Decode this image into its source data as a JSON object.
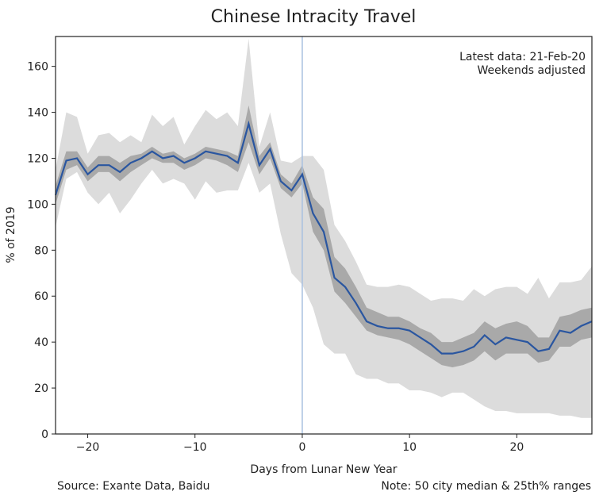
{
  "chart_data": {
    "type": "line",
    "title": "Chinese Intracity Travel",
    "xlabel": "Days from Lunar New Year",
    "ylabel": "% of 2019",
    "xlim": [
      -23,
      27
    ],
    "ylim": [
      0,
      173
    ],
    "xticks": [
      -20,
      -10,
      0,
      10,
      20
    ],
    "xtick_labels": [
      "−20",
      "−10",
      "0",
      "10",
      "20"
    ],
    "yticks": [
      0,
      20,
      40,
      60,
      80,
      100,
      120,
      140,
      160
    ],
    "grid": false,
    "annotation": [
      "Latest data: 21-Feb-20",
      "Weekends adjusted"
    ],
    "footer_left": "Source: Exante Data, Baidu",
    "footer_right": "Note: 50 city median & 25th% ranges",
    "vline_x": 0,
    "colors": {
      "median": "#2a56a0",
      "inner": "#a9a9a9",
      "outer": "#dcdcdc",
      "vline": "#a8c0e0"
    },
    "x": [
      -23,
      -22,
      -21,
      -20,
      -19,
      -18,
      -17,
      -16,
      -15,
      -14,
      -13,
      -12,
      -11,
      -10,
      -9,
      -8,
      -7,
      -6,
      -5,
      -4,
      -3,
      -2,
      -1,
      0,
      1,
      2,
      3,
      4,
      5,
      6,
      7,
      8,
      9,
      10,
      11,
      12,
      13,
      14,
      15,
      16,
      17,
      18,
      19,
      20,
      21,
      22,
      23,
      24,
      25,
      26,
      27
    ],
    "median": [
      104,
      119,
      120,
      113,
      117,
      117,
      114,
      118,
      120,
      123,
      120,
      121,
      118,
      120,
      123,
      122,
      121,
      118,
      135,
      117,
      124,
      110,
      106,
      113,
      96,
      88,
      68,
      64,
      57,
      49,
      47,
      46,
      46,
      45,
      42,
      39,
      35,
      35,
      36,
      38,
      43,
      39,
      42,
      41,
      40,
      36,
      37,
      45,
      44,
      47,
      49
    ],
    "inner_upper": [
      108,
      123,
      123,
      116,
      121,
      121,
      118,
      121,
      122,
      125,
      122,
      123,
      120,
      122,
      125,
      124,
      123,
      121,
      143,
      121,
      127,
      113,
      109,
      117,
      103,
      98,
      77,
      72,
      64,
      55,
      53,
      51,
      51,
      49,
      46,
      44,
      40,
      40,
      42,
      44,
      49,
      46,
      48,
      49,
      47,
      42,
      42,
      51,
      52,
      54,
      55
    ],
    "inner_lower": [
      100,
      115,
      117,
      110,
      114,
      114,
      110,
      114,
      117,
      120,
      118,
      118,
      115,
      117,
      120,
      119,
      117,
      114,
      127,
      113,
      120,
      107,
      103,
      109,
      88,
      80,
      62,
      57,
      51,
      45,
      43,
      42,
      41,
      39,
      36,
      33,
      30,
      29,
      30,
      32,
      36,
      32,
      35,
      35,
      35,
      31,
      32,
      38,
      38,
      41,
      42
    ],
    "outer_upper": [
      115,
      140,
      138,
      122,
      130,
      131,
      127,
      130,
      127,
      139,
      134,
      138,
      126,
      134,
      141,
      137,
      140,
      134,
      172,
      125,
      140,
      119,
      118,
      121,
      121,
      115,
      91,
      84,
      75,
      65,
      64,
      64,
      65,
      64,
      61,
      58,
      59,
      59,
      58,
      63,
      60,
      63,
      64,
      64,
      61,
      68,
      59,
      66,
      66,
      67,
      73
    ],
    "outer_lower": [
      90,
      111,
      114,
      105,
      100,
      105,
      96,
      102,
      109,
      115,
      109,
      111,
      109,
      102,
      110,
      105,
      106,
      106,
      118,
      105,
      109,
      87,
      70,
      65,
      55,
      39,
      35,
      35,
      26,
      24,
      24,
      22,
      22,
      19,
      19,
      18,
      16,
      18,
      18,
      15,
      12,
      10,
      10,
      9,
      9,
      9,
      9,
      8,
      8,
      7,
      7
    ]
  }
}
